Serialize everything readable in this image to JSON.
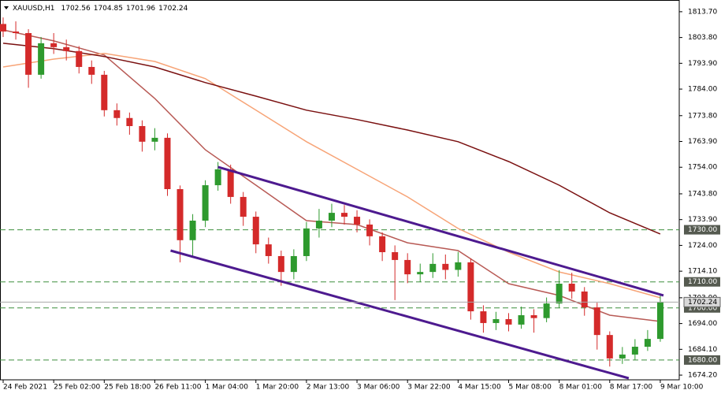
{
  "chart_data": {
    "type": "candlestick",
    "title": "XAUUSD,H1",
    "header_ohlc": [
      1702.56,
      1704.85,
      1701.96,
      1702.24
    ],
    "x": [
      0,
      4,
      8,
      12,
      16,
      20,
      24,
      28,
      32,
      36,
      40,
      44,
      48,
      52,
      56,
      60,
      64,
      68,
      72,
      76,
      80,
      84,
      88,
      92,
      96,
      100,
      104,
      108,
      112,
      116,
      120,
      124,
      128,
      132,
      136,
      140,
      144,
      148,
      152,
      156,
      160,
      164,
      168,
      172,
      176,
      180,
      184,
      188,
      192,
      196,
      200,
      204,
      208
    ],
    "open": [
      1809.0,
      1806.1,
      1805.5,
      1789.5,
      1801.6,
      1800.1,
      1798.6,
      1792.5,
      1789.5,
      1775.9,
      1772.9,
      1769.8,
      1763.8,
      1765.3,
      1745.6,
      1726.0,
      1733.5,
      1747.1,
      1753.2,
      1742.6,
      1735.0,
      1724.4,
      1719.9,
      1713.8,
      1719.9,
      1730.5,
      1733.5,
      1736.5,
      1735.0,
      1732.0,
      1727.5,
      1721.4,
      1718.4,
      1712.9,
      1713.8,
      1716.9,
      1714.6,
      1717.5,
      1698.7,
      1694.2,
      1695.7,
      1693.6,
      1697.2,
      1696.1,
      1701.7,
      1709.3,
      1706.3,
      1700.2,
      1689.6,
      1680.6,
      1682.1,
      1685.1,
      1688.1
    ],
    "high": [
      1811.5,
      1810.0,
      1807.0,
      1804.0,
      1805.5,
      1803.0,
      1800.5,
      1795.0,
      1791.0,
      1778.5,
      1775.0,
      1772.0,
      1769.0,
      1767.0,
      1747.0,
      1736.0,
      1749.0,
      1756.0,
      1755.0,
      1744.5,
      1737.0,
      1727.0,
      1722.0,
      1722.5,
      1733.0,
      1738.0,
      1740.0,
      1739.5,
      1737.5,
      1734.0,
      1729.0,
      1724.0,
      1721.0,
      1717.0,
      1721.0,
      1720.5,
      1721.5,
      1719.0,
      1701.0,
      1698.5,
      1698.0,
      1700.5,
      1699.5,
      1704.0,
      1714.5,
      1713.5,
      1708.0,
      1702.0,
      1691.0,
      1685.0,
      1688.0,
      1691.5,
      1704.85
    ],
    "low": [
      1804.0,
      1803.0,
      1784.5,
      1788.0,
      1797.5,
      1795.0,
      1790.0,
      1786.0,
      1773.5,
      1770.0,
      1766.5,
      1760.0,
      1760.5,
      1743.0,
      1717.5,
      1720.0,
      1731.0,
      1745.0,
      1740.0,
      1731.5,
      1721.0,
      1717.0,
      1708.5,
      1711.0,
      1718.0,
      1727.0,
      1731.0,
      1732.0,
      1729.0,
      1724.0,
      1718.0,
      1703.0,
      1709.5,
      1710.0,
      1711.5,
      1711.0,
      1712.0,
      1695.5,
      1690.5,
      1691.5,
      1691.0,
      1692.0,
      1690.5,
      1694.5,
      1700.0,
      1703.5,
      1697.0,
      1684.0,
      1677.5,
      1678.5,
      1680.0,
      1683.5,
      1687.0
    ],
    "close": [
      1806.1,
      1805.5,
      1789.5,
      1801.6,
      1800.1,
      1798.6,
      1792.5,
      1789.5,
      1775.9,
      1772.9,
      1769.8,
      1763.8,
      1765.3,
      1745.6,
      1726.0,
      1733.5,
      1747.1,
      1753.2,
      1742.6,
      1735.0,
      1724.4,
      1719.9,
      1713.8,
      1719.9,
      1730.5,
      1733.5,
      1736.5,
      1735.0,
      1732.0,
      1727.5,
      1721.4,
      1718.4,
      1712.9,
      1713.8,
      1716.9,
      1714.6,
      1717.5,
      1698.7,
      1694.2,
      1695.7,
      1693.6,
      1697.2,
      1696.1,
      1701.7,
      1709.3,
      1706.3,
      1700.2,
      1689.6,
      1680.6,
      1682.1,
      1685.1,
      1688.1,
      1702.24
    ],
    "up_color": "#2e9a2e",
    "down_color": "#d42a2a",
    "overlays": [
      {
        "color": "#b85a55",
        "x": [
          0,
          16,
          32,
          48,
          64,
          80,
          96,
          112,
          128,
          144,
          160,
          176,
          192,
          208
        ],
        "values": [
          1806.7,
          1802.5,
          1797.1,
          1780.4,
          1760.7,
          1747.1,
          1733.5,
          1732.0,
          1725.0,
          1722.0,
          1709.3,
          1704.8,
          1697.2,
          1694.8
        ]
      },
      {
        "color": "#f7a477",
        "x": [
          0,
          16,
          32,
          48,
          64,
          80,
          96,
          112,
          128,
          144,
          160,
          176,
          192,
          208
        ],
        "values": [
          1792.5,
          1795.5,
          1797.7,
          1794.6,
          1788.0,
          1775.9,
          1763.8,
          1753.2,
          1742.6,
          1730.5,
          1721.4,
          1713.8,
          1709.3,
          1703.9
        ]
      },
      {
        "color": "#7a1010",
        "x": [
          0,
          16,
          32,
          48,
          64,
          80,
          96,
          112,
          128,
          144,
          160,
          176,
          192,
          208
        ],
        "values": [
          1801.6,
          1799.5,
          1796.5,
          1792.5,
          1786.5,
          1781.3,
          1775.9,
          1772.3,
          1768.3,
          1763.8,
          1756.2,
          1747.1,
          1736.5,
          1728.4
        ]
      }
    ],
    "trendlines": [
      {
        "color": "#4d1a8f",
        "x": [
          68,
          209
        ],
        "values": [
          1754.1,
          1704.8
        ]
      },
      {
        "color": "#4d1a8f",
        "x": [
          53,
          198
        ],
        "values": [
          1722.0,
          1673.0
        ]
      }
    ],
    "levels": [
      {
        "value": 1730,
        "label": "1730.00"
      },
      {
        "value": 1710,
        "label": "1710.00"
      },
      {
        "value": 1700,
        "label": "1700.00"
      },
      {
        "value": 1680,
        "label": "1680.00"
      }
    ],
    "level_color": "#3f8f3f",
    "last_price_color": "#a8a8a8",
    "xlim": [
      -1,
      214
    ],
    "xticks": [
      {
        "value": 0,
        "label": "24 Feb 2021"
      },
      {
        "value": 16,
        "label": "25 Feb 02:00"
      },
      {
        "value": 32,
        "label": "25 Feb 18:00"
      },
      {
        "value": 48,
        "label": "26 Feb 11:00"
      },
      {
        "value": 64,
        "label": "1 Mar 04:00"
      },
      {
        "value": 80,
        "label": "1 Mar 20:00"
      },
      {
        "value": 96,
        "label": "2 Mar 13:00"
      },
      {
        "value": 112,
        "label": "3 Mar 06:00"
      },
      {
        "value": 128,
        "label": "3 Mar 22:00"
      },
      {
        "value": 144,
        "label": "4 Mar 15:00"
      },
      {
        "value": 160,
        "label": "5 Mar 08:00"
      },
      {
        "value": 176,
        "label": "8 Mar 01:00"
      },
      {
        "value": 192,
        "label": "8 Mar 17:00"
      },
      {
        "value": 208,
        "label": "9 Mar 10:00"
      }
    ],
    "ylim": [
      1672.4,
      1818.2
    ],
    "yticks": [
      {
        "value": 1813.7,
        "label": "1813.70"
      },
      {
        "value": 1803.8,
        "label": "1803.80"
      },
      {
        "value": 1793.9,
        "label": "1793.90"
      },
      {
        "value": 1784,
        "label": "1784.00"
      },
      {
        "value": 1773.8,
        "label": "1773.80"
      },
      {
        "value": 1763.9,
        "label": "1763.90"
      },
      {
        "value": 1754,
        "label": "1754.00"
      },
      {
        "value": 1743.8,
        "label": "1743.80"
      },
      {
        "value": 1733.9,
        "label": "1733.90"
      },
      {
        "value": 1724,
        "label": "1724.00"
      },
      {
        "value": 1714.1,
        "label": "1714.10"
      },
      {
        "value": 1703.9,
        "label": "1703.90"
      },
      {
        "value": 1694,
        "label": "1694.00"
      },
      {
        "value": 1684.1,
        "label": "1684.10"
      },
      {
        "value": 1674.2,
        "label": "1674.20"
      }
    ]
  }
}
